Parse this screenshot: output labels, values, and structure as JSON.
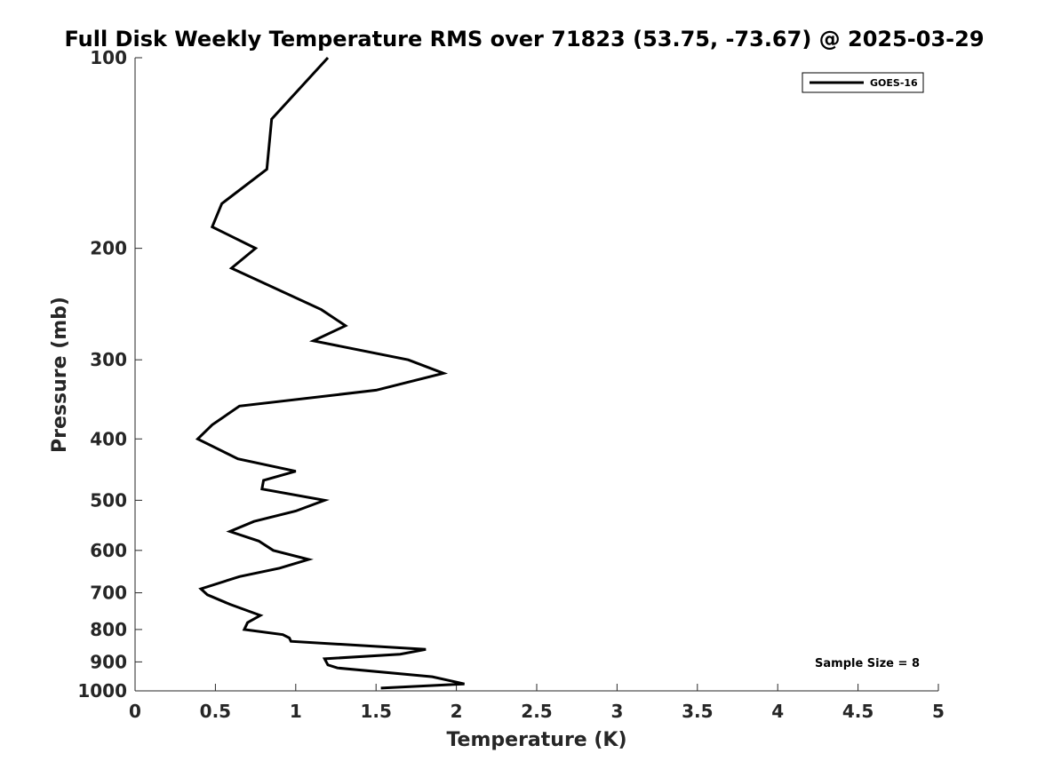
{
  "chart_data": {
    "type": "line",
    "title": "Full Disk Weekly Temperature RMS over 71823 (53.75, -73.67) @ 2025-03-29",
    "xlabel": "Temperature (K)",
    "ylabel": "Pressure (mb)",
    "xlim": [
      0,
      5
    ],
    "ylim": [
      100,
      1000
    ],
    "y_scale": "log",
    "y_direction": "reversed",
    "x_ticks": [
      0,
      0.5,
      1,
      1.5,
      2,
      2.5,
      3,
      3.5,
      4,
      4.5,
      5
    ],
    "x_tick_labels": [
      "0",
      "0.5",
      "1",
      "1.5",
      "2",
      "2.5",
      "3",
      "3.5",
      "4",
      "4.5",
      "5"
    ],
    "y_ticks": [
      100,
      200,
      300,
      400,
      500,
      600,
      700,
      800,
      900,
      1000
    ],
    "y_tick_labels": [
      "100",
      "200",
      "300",
      "400",
      "500",
      "600",
      "700",
      "800",
      "900",
      "1000"
    ],
    "grid": false,
    "legend_position": "top-right",
    "annotation": "Sample Size = 8",
    "series": [
      {
        "name": "GOES-16",
        "color": "#000000",
        "points": [
          [
            1.2,
            100
          ],
          [
            0.85,
            125
          ],
          [
            0.82,
            150
          ],
          [
            0.54,
            170
          ],
          [
            0.48,
            185
          ],
          [
            0.75,
            200
          ],
          [
            0.6,
            215
          ],
          [
            1.16,
            250
          ],
          [
            1.31,
            265
          ],
          [
            1.11,
            280
          ],
          [
            1.7,
            300
          ],
          [
            1.92,
            315
          ],
          [
            1.5,
            335
          ],
          [
            0.65,
            355
          ],
          [
            0.48,
            380
          ],
          [
            0.39,
            400
          ],
          [
            0.64,
            430
          ],
          [
            1.0,
            450
          ],
          [
            0.8,
            465
          ],
          [
            0.79,
            480
          ],
          [
            1.18,
            500
          ],
          [
            1.0,
            520
          ],
          [
            0.74,
            540
          ],
          [
            0.59,
            560
          ],
          [
            0.77,
            580
          ],
          [
            0.86,
            600
          ],
          [
            1.08,
            620
          ],
          [
            0.9,
            640
          ],
          [
            0.65,
            660
          ],
          [
            0.41,
            690
          ],
          [
            0.45,
            705
          ],
          [
            0.59,
            730
          ],
          [
            0.78,
            760
          ],
          [
            0.7,
            780
          ],
          [
            0.68,
            800
          ],
          [
            0.92,
            815
          ],
          [
            0.96,
            825
          ],
          [
            0.97,
            835
          ],
          [
            1.81,
            860
          ],
          [
            1.65,
            875
          ],
          [
            1.18,
            890
          ],
          [
            1.2,
            910
          ],
          [
            1.26,
            920
          ],
          [
            1.85,
            950
          ],
          [
            2.05,
            975
          ],
          [
            1.53,
            990
          ]
        ]
      }
    ]
  }
}
